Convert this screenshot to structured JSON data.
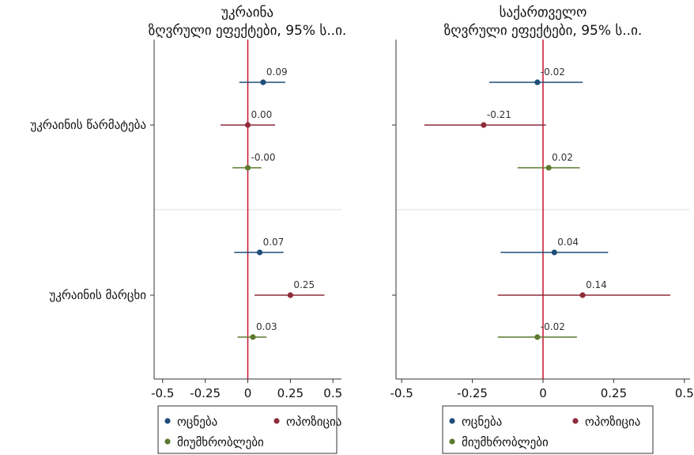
{
  "chart_data": [
    {
      "type": "scatter",
      "title": "უკრაინა",
      "subtitle": "ზღვრული ეფექტები, 95% ს..ი.",
      "xlim": [
        -0.55,
        0.55
      ],
      "xticks": [
        -0.5,
        -0.25,
        0,
        0.25,
        0.5
      ],
      "xtick_labels": [
        "-0.5",
        "-0.25",
        "0",
        "0.25",
        "0.5"
      ],
      "reference_line_x": 0,
      "categories": [
        "უკრაინის წარმატება",
        "უკრაინის მარცხი"
      ],
      "series": [
        {
          "name": "ოცნება",
          "color": "#1f4e79",
          "points": [
            {
              "category": "უკრაინის წარმატება",
              "estimate": 0.09,
              "ci": [
                -0.05,
                0.22
              ],
              "label": "0.09"
            },
            {
              "category": "უკრაინის მარცხი",
              "estimate": 0.07,
              "ci": [
                -0.08,
                0.21
              ],
              "label": "0.07"
            }
          ]
        },
        {
          "name": "ოპოზიცია",
          "color": "#8e2c3c",
          "points": [
            {
              "category": "უკრაინის წარმატება",
              "estimate": 0.0,
              "ci": [
                -0.16,
                0.16
              ],
              "label": "0.00"
            },
            {
              "category": "უკრაინის მარცხი",
              "estimate": 0.25,
              "ci": [
                0.04,
                0.45
              ],
              "label": "0.25"
            }
          ]
        },
        {
          "name": "მიუმხრობლები",
          "color": "#5c7a2e",
          "points": [
            {
              "category": "უკრაინის წარმატება",
              "estimate": -0.0,
              "ci": [
                -0.09,
                0.08
              ],
              "label": "-0.00"
            },
            {
              "category": "უკრაინის მარცხი",
              "estimate": 0.03,
              "ci": [
                -0.06,
                0.11
              ],
              "label": "0.03"
            }
          ]
        }
      ]
    },
    {
      "type": "scatter",
      "title": "საქართველო",
      "subtitle": "ზღვრული ეფექტები, 95% ს..ი.",
      "xlim": [
        -0.52,
        0.52
      ],
      "xticks": [
        -0.5,
        -0.25,
        0,
        0.25,
        0.5
      ],
      "xtick_labels": [
        "-0.5",
        "-0.25",
        "0",
        "0.25",
        "0.5"
      ],
      "reference_line_x": 0,
      "categories": [
        "",
        ""
      ],
      "series": [
        {
          "name": "ოცნება",
          "color": "#1f4e79",
          "points": [
            {
              "category": 0,
              "estimate": -0.02,
              "ci": [
                -0.19,
                0.14
              ],
              "label": "-0.02"
            },
            {
              "category": 1,
              "estimate": 0.04,
              "ci": [
                -0.15,
                0.23
              ],
              "label": "0.04"
            }
          ]
        },
        {
          "name": "ოპოზიცია",
          "color": "#8e2c3c",
          "points": [
            {
              "category": 0,
              "estimate": -0.21,
              "ci": [
                -0.42,
                0.01
              ],
              "label": "-0.21"
            },
            {
              "category": 1,
              "estimate": 0.14,
              "ci": [
                -0.16,
                0.45
              ],
              "label": "0.14"
            }
          ]
        },
        {
          "name": "მიუმხრობლები",
          "color": "#5c7a2e",
          "points": [
            {
              "category": 0,
              "estimate": 0.02,
              "ci": [
                -0.09,
                0.13
              ],
              "label": "0.02"
            },
            {
              "category": 1,
              "estimate": -0.02,
              "ci": [
                -0.16,
                0.12
              ],
              "label": "-0.02"
            }
          ]
        }
      ]
    }
  ],
  "legend": {
    "placement": "bottom",
    "items": [
      {
        "label": "ოცნება",
        "color": "#1f4e79"
      },
      {
        "label": "ოპოზიცია",
        "color": "#8e2c3c"
      },
      {
        "label": "მიუმხრობლები",
        "color": "#5c7a2e"
      }
    ]
  },
  "colors": {
    "reference_line": "#c8102e",
    "separator": "#e8e8e8",
    "axis": "#333333"
  }
}
